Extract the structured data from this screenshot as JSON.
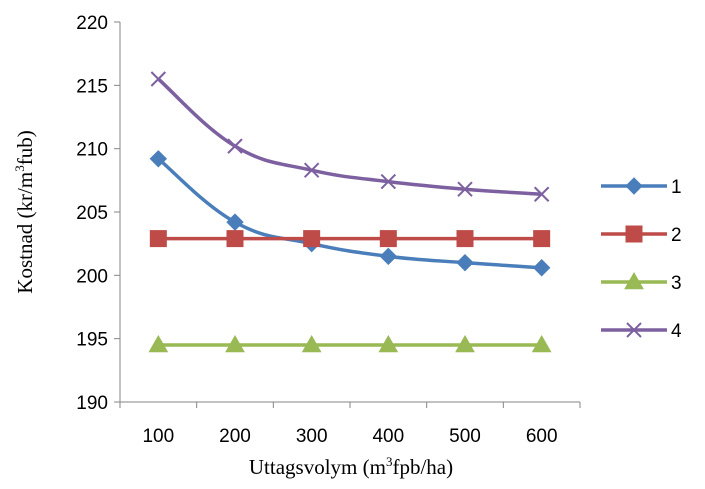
{
  "chart_data": {
    "type": "line",
    "xlabel": {
      "pre": "Uttagsvolym (m",
      "sup": "3",
      "post": "fpb/ha)"
    },
    "ylabel": {
      "pre": "Kostnad (kr/m",
      "sup": "3",
      "post": "fub)"
    },
    "categories": [
      "100",
      "200",
      "300",
      "400",
      "500",
      "600"
    ],
    "ylim": [
      190,
      220
    ],
    "yticks": [
      "190",
      "195",
      "200",
      "205",
      "210",
      "215",
      "220"
    ],
    "grid": false,
    "legend_position": "right",
    "series": [
      {
        "name": "1",
        "color": "#4A7EBB",
        "marker": "diamond",
        "values": [
          209.2,
          204.2,
          202.5,
          201.5,
          201.0,
          200.6
        ]
      },
      {
        "name": "2",
        "color": "#BE4B48",
        "marker": "square",
        "values": [
          202.9,
          202.9,
          202.9,
          202.9,
          202.9,
          202.9
        ]
      },
      {
        "name": "3",
        "color": "#98B954",
        "marker": "triangle",
        "values": [
          194.5,
          194.5,
          194.5,
          194.5,
          194.5,
          194.5
        ]
      },
      {
        "name": "4",
        "color": "#7D60A0",
        "marker": "x",
        "values": [
          215.5,
          210.2,
          208.3,
          207.4,
          206.8,
          206.4
        ]
      }
    ]
  }
}
